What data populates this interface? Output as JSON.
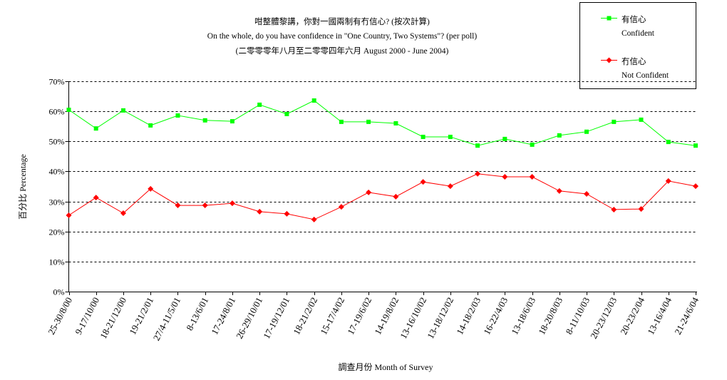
{
  "chart_data": {
    "type": "line",
    "title": "咁整體黎講，你對一國兩制有冇信心? (按次計算)",
    "subtitle": "On the whole, do you have confidence in \"One Country, Two Systems\"? (per poll)",
    "period": "(二零零零年八月至二零零四年六月 August 2000 - June 2004)",
    "xlabel": "調查月份 Month of Survey",
    "ylabel": "百分比 Percentage",
    "ylim": [
      0,
      70
    ],
    "yticks": [
      "0%",
      "10%",
      "20%",
      "30%",
      "40%",
      "50%",
      "60%",
      "70%"
    ],
    "grid": true,
    "legend_position": "top-right",
    "categories": [
      "25-30/8/00",
      "9-17/10/00",
      "18-21/12/00",
      "19-21/2/01",
      "27/4-11/5/01",
      "8-13/6/01",
      "17-24/8/01",
      "26-29/10/01",
      "17-19/12/01",
      "18-21/2/02",
      "15-17/4/02",
      "17-19/6/02",
      "14-19/8/02",
      "13-16/10/02",
      "13-18/12/02",
      "14-18/2/03",
      "16-22/4/03",
      "13-18/6/03",
      "18-20/8/03",
      "8-11/10/03",
      "20-23/12/03",
      "20-23/2/04",
      "13-16/4/04",
      "21-24/6/04"
    ],
    "series": [
      {
        "name": "有信心",
        "name_en": "Confident",
        "color": "#00ff00",
        "marker": "square",
        "values": [
          60.5,
          54.3,
          60.3,
          55.3,
          58.6,
          57.0,
          56.7,
          62.2,
          59.1,
          63.6,
          56.5,
          56.5,
          56.0,
          51.5,
          51.5,
          48.6,
          50.8,
          48.9,
          52.0,
          53.2,
          56.5,
          57.2,
          49.8,
          48.6
        ]
      },
      {
        "name": "冇信心",
        "name_en": "Not Confident",
        "color": "#ff0000",
        "marker": "diamond",
        "values": [
          25.4,
          31.3,
          26.1,
          34.2,
          28.7,
          28.7,
          29.4,
          26.6,
          25.9,
          24.0,
          28.2,
          33.0,
          31.6,
          36.5,
          35.1,
          39.2,
          38.2,
          38.2,
          33.5,
          32.5,
          27.3,
          27.5,
          36.8,
          35.1
        ]
      }
    ]
  }
}
